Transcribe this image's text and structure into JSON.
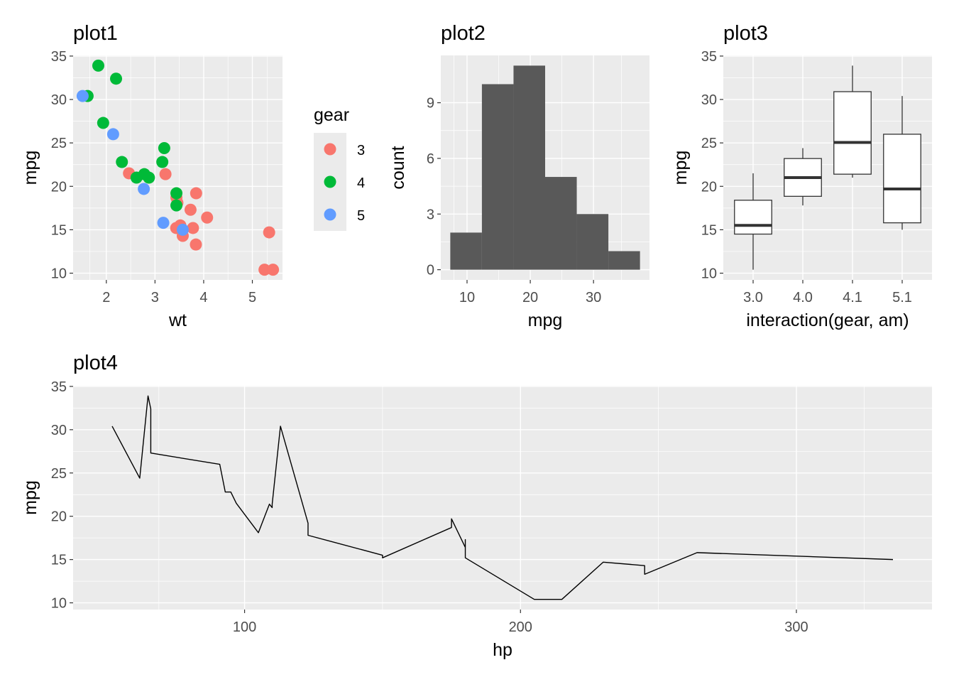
{
  "panel_titles": {
    "plot1": "plot1",
    "plot2": "plot2",
    "plot3": "plot3",
    "plot4": "plot4"
  },
  "colors": {
    "panel_bg": "#ebebeb",
    "grid": "#ffffff",
    "tick": "#333333",
    "gear_3": "#f8766d",
    "gear_4": "#00ba38",
    "gear_5": "#619cff",
    "bar_fill": "#595959",
    "line": "#000000"
  },
  "chart_data": [
    {
      "id": "plot1",
      "type": "scatter",
      "title": "plot1",
      "xlabel": "wt",
      "ylabel": "mpg",
      "xlim": [
        1.513,
        5.424
      ],
      "ylim": [
        10.4,
        33.9
      ],
      "xticks": [
        2,
        3,
        4,
        5
      ],
      "xtick_labels": [
        "2",
        "3",
        "4",
        "5"
      ],
      "yticks": [
        10,
        15,
        20,
        25,
        30,
        35
      ],
      "ytick_labels": [
        "10",
        "15",
        "20",
        "25",
        "30",
        "35"
      ],
      "legend": {
        "title": "gear",
        "placement": "right",
        "entries": [
          {
            "label": "3",
            "color": "#f8766d"
          },
          {
            "label": "4",
            "color": "#00ba38"
          },
          {
            "label": "5",
            "color": "#619cff"
          }
        ]
      },
      "series": [
        {
          "name": "3",
          "color": "#f8766d",
          "points": [
            [
              3.215,
              21.4
            ],
            [
              3.44,
              18.7
            ],
            [
              3.46,
              18.1
            ],
            [
              3.57,
              14.3
            ],
            [
              4.07,
              16.4
            ],
            [
              3.73,
              17.3
            ],
            [
              3.78,
              15.2
            ],
            [
              5.25,
              10.4
            ],
            [
              5.424,
              10.4
            ],
            [
              5.345,
              14.7
            ],
            [
              2.465,
              21.5
            ],
            [
              3.52,
              15.5
            ],
            [
              3.435,
              15.2
            ],
            [
              3.84,
              13.3
            ],
            [
              3.845,
              19.2
            ]
          ]
        },
        {
          "name": "4",
          "color": "#00ba38",
          "points": [
            [
              2.62,
              21.0
            ],
            [
              2.875,
              21.0
            ],
            [
              2.32,
              22.8
            ],
            [
              3.19,
              24.4
            ],
            [
              3.15,
              22.8
            ],
            [
              3.44,
              19.2
            ],
            [
              3.44,
              17.8
            ],
            [
              2.2,
              32.4
            ],
            [
              1.615,
              30.4
            ],
            [
              1.835,
              33.9
            ],
            [
              1.935,
              27.3
            ],
            [
              2.78,
              21.4
            ]
          ]
        },
        {
          "name": "5",
          "color": "#619cff",
          "points": [
            [
              2.14,
              26.0
            ],
            [
              1.513,
              30.4
            ],
            [
              3.17,
              15.8
            ],
            [
              2.77,
              19.7
            ],
            [
              3.57,
              15.0
            ]
          ]
        }
      ]
    },
    {
      "id": "plot2",
      "type": "bar",
      "subtype": "histogram",
      "title": "plot2",
      "xlabel": "mpg",
      "ylabel": "count",
      "xlim": [
        5.85,
        38.75
      ],
      "ylim": [
        0,
        11
      ],
      "xticks": [
        10,
        20,
        30
      ],
      "xtick_labels": [
        "10",
        "20",
        "30"
      ],
      "yticks": [
        0,
        3,
        6,
        9
      ],
      "ytick_labels": [
        "0",
        "3",
        "6",
        "9"
      ],
      "bins": [
        {
          "x0": 7.35,
          "x1": 12.35,
          "count": 2
        },
        {
          "x0": 12.35,
          "x1": 17.35,
          "count": 10
        },
        {
          "x0": 17.35,
          "x1": 22.35,
          "count": 11
        },
        {
          "x0": 22.35,
          "x1": 27.35,
          "count": 5
        },
        {
          "x0": 27.35,
          "x1": 32.35,
          "count": 3
        },
        {
          "x0": 32.35,
          "x1": 37.35,
          "count": 1
        }
      ]
    },
    {
      "id": "plot3",
      "type": "boxplot",
      "title": "plot3",
      "xlabel": "interaction(gear, am)",
      "ylabel": "mpg",
      "ylim": [
        10.4,
        33.9
      ],
      "yticks": [
        10,
        15,
        20,
        25,
        30,
        35
      ],
      "ytick_labels": [
        "10",
        "15",
        "20",
        "25",
        "30",
        "35"
      ],
      "categories": [
        "3.0",
        "4.0",
        "4.1",
        "5.1"
      ],
      "boxes": [
        {
          "category": "3.0",
          "min": 10.4,
          "q1": 14.5,
          "median": 15.5,
          "q3": 18.4,
          "max": 21.5
        },
        {
          "category": "4.0",
          "min": 17.8,
          "q1": 18.85,
          "median": 21.0,
          "q3": 23.2,
          "max": 24.4
        },
        {
          "category": "4.1",
          "min": 21.0,
          "q1": 21.4,
          "median": 25.05,
          "q3": 30.9,
          "max": 33.9
        },
        {
          "category": "5.1",
          "min": 15.0,
          "q1": 15.8,
          "median": 19.7,
          "q3": 26.0,
          "max": 30.4
        }
      ]
    },
    {
      "id": "plot4",
      "type": "line",
      "title": "plot4",
      "xlabel": "hp",
      "ylabel": "mpg",
      "xlim": [
        52,
        335
      ],
      "ylim": [
        10.4,
        33.9
      ],
      "xticks": [
        100,
        200,
        300
      ],
      "xtick_labels": [
        "100",
        "200",
        "300"
      ],
      "yticks": [
        10,
        15,
        20,
        25,
        30,
        35
      ],
      "ytick_labels": [
        "10",
        "15",
        "20",
        "25",
        "30",
        "35"
      ],
      "points": [
        [
          52,
          30.4
        ],
        [
          62,
          24.4
        ],
        [
          65,
          33.9
        ],
        [
          66,
          32.4
        ],
        [
          66,
          27.3
        ],
        [
          91,
          26.0
        ],
        [
          93,
          22.8
        ],
        [
          95,
          22.8
        ],
        [
          97,
          21.5
        ],
        [
          105,
          18.1
        ],
        [
          109,
          21.4
        ],
        [
          110,
          21.0
        ],
        [
          110,
          21.0
        ],
        [
          110,
          21.4
        ],
        [
          113,
          30.4
        ],
        [
          123,
          19.2
        ],
        [
          123,
          17.8
        ],
        [
          150,
          15.5
        ],
        [
          150,
          15.2
        ],
        [
          175,
          18.7
        ],
        [
          175,
          19.2
        ],
        [
          175,
          19.7
        ],
        [
          180,
          16.4
        ],
        [
          180,
          17.3
        ],
        [
          180,
          15.2
        ],
        [
          205,
          10.4
        ],
        [
          215,
          10.4
        ],
        [
          230,
          14.7
        ],
        [
          245,
          14.3
        ],
        [
          245,
          13.3
        ],
        [
          264,
          15.8
        ],
        [
          335,
          15.0
        ]
      ]
    }
  ]
}
